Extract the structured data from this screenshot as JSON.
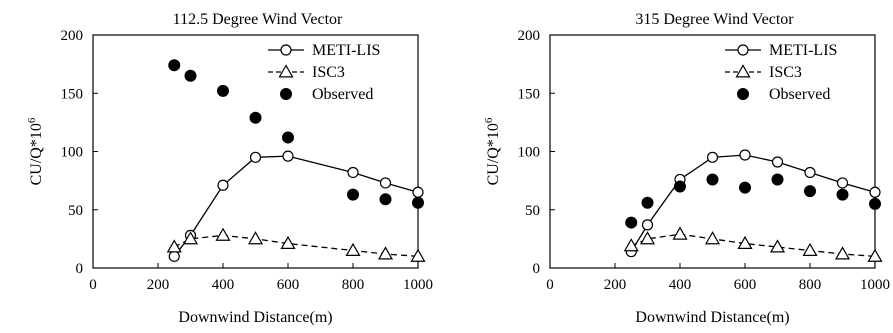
{
  "chart_data": [
    {
      "type": "line",
      "title": "112.5 Degree Wind Vector",
      "xlabel": "Downwind Distance(m)",
      "ylabel": "CU/Q*10",
      "ylabel_sup": "6",
      "xlim": [
        0,
        1000
      ],
      "ylim": [
        0,
        200
      ],
      "xticks": [
        "0",
        "200",
        "400",
        "600",
        "800",
        "1000"
      ],
      "yticks": [
        "0",
        "50",
        "100",
        "150",
        "200"
      ],
      "grid": false,
      "legend_position": "top-right",
      "series": [
        {
          "name": "METI-LIS",
          "marker": "open-circle",
          "line": "solid",
          "x": [
            250,
            300,
            400,
            500,
            600,
            800,
            900,
            1000
          ],
          "y": [
            10,
            28,
            71,
            95,
            96,
            82,
            73,
            65
          ]
        },
        {
          "name": "ISC3",
          "marker": "open-triangle",
          "line": "dashed",
          "x": [
            250,
            300,
            400,
            500,
            600,
            800,
            900,
            1000
          ],
          "y": [
            18,
            25,
            28,
            25,
            21,
            15,
            12,
            10
          ]
        },
        {
          "name": "Observed",
          "marker": "filled-circle",
          "line": "none",
          "x": [
            250,
            300,
            400,
            500,
            600,
            800,
            900,
            1000
          ],
          "y": [
            174,
            165,
            152,
            129,
            112,
            63,
            59,
            56
          ]
        }
      ]
    },
    {
      "type": "line",
      "title": "315 Degree Wind Vector",
      "xlabel": "Downwind Distance(m)",
      "ylabel": "CU/Q*10",
      "ylabel_sup": "6",
      "xlim": [
        0,
        1000
      ],
      "ylim": [
        0,
        200
      ],
      "xticks": [
        "0",
        "200",
        "400",
        "600",
        "800",
        "1000"
      ],
      "yticks": [
        "0",
        "50",
        "100",
        "150",
        "200"
      ],
      "grid": false,
      "legend_position": "top-right",
      "series": [
        {
          "name": "METI-LIS",
          "marker": "open-circle",
          "line": "solid",
          "x": [
            250,
            300,
            400,
            500,
            600,
            700,
            800,
            900,
            1000
          ],
          "y": [
            14,
            37,
            76,
            95,
            97,
            91,
            82,
            73,
            65
          ]
        },
        {
          "name": "ISC3",
          "marker": "open-triangle",
          "line": "dashed",
          "x": [
            250,
            300,
            400,
            500,
            600,
            700,
            800,
            900,
            1000
          ],
          "y": [
            19,
            25,
            29,
            25,
            21,
            18,
            15,
            12,
            10
          ]
        },
        {
          "name": "Observed",
          "marker": "filled-circle",
          "line": "none",
          "x": [
            250,
            300,
            400,
            500,
            600,
            700,
            800,
            900,
            1000
          ],
          "y": [
            39,
            56,
            70,
            76,
            69,
            76,
            66,
            63,
            55
          ]
        }
      ]
    }
  ]
}
